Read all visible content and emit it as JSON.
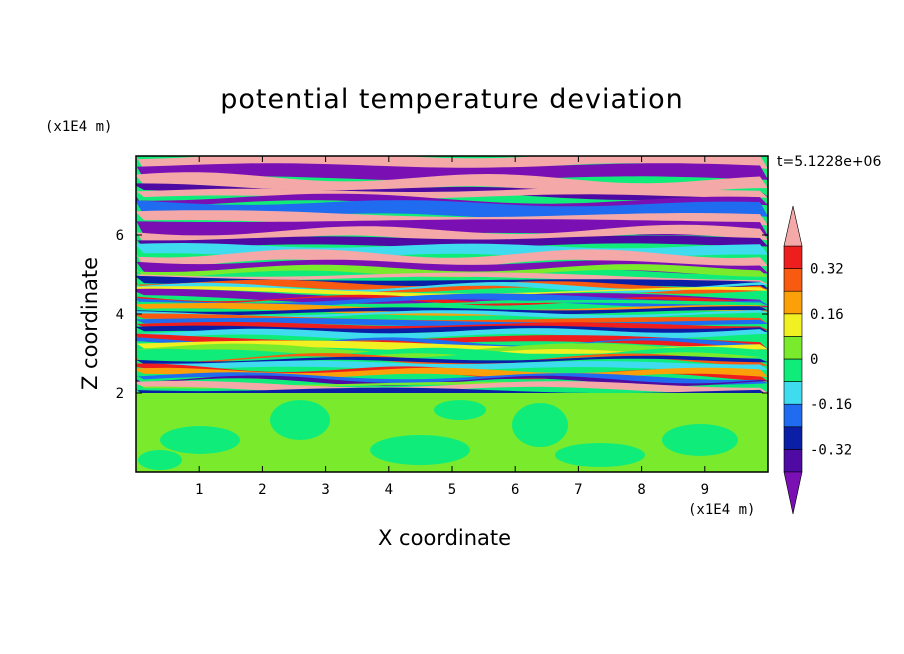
{
  "chart_data": {
    "type": "heatmap",
    "title": "potential temperature deviation",
    "xlabel": "X coordinate",
    "ylabel": "Z coordinate",
    "x_unit": "(x1E4 m)",
    "z_unit": "(x1E4 m)",
    "time_label": "t=5.1228e+06",
    "xlim": [
      0,
      10
    ],
    "ylim": [
      0,
      8
    ],
    "x_ticks": [
      1,
      2,
      3,
      4,
      5,
      6,
      7,
      8,
      9
    ],
    "y_ticks": [
      2,
      4,
      6
    ],
    "layer_boundary_z": 2,
    "colorbar": {
      "levels": [
        -0.48,
        -0.4,
        -0.32,
        -0.24,
        -0.16,
        -0.08,
        0,
        0.08,
        0.16,
        0.24,
        0.32,
        0.4,
        0.48
      ],
      "labels": [
        "0.32",
        "0.16",
        "0",
        "-0.16",
        "-0.32"
      ],
      "label_values": [
        0.32,
        0.16,
        0,
        -0.16,
        -0.32
      ],
      "colors": [
        "#7a10b4",
        "#4e0aa3",
        "#0a1ea6",
        "#1f6cf0",
        "#3fdcf0",
        "#10ec7a",
        "#7aea2c",
        "#f0f022",
        "#fca00a",
        "#f85a10",
        "#ee1e1e",
        "#f4a8a8"
      ],
      "extend": "both"
    }
  }
}
